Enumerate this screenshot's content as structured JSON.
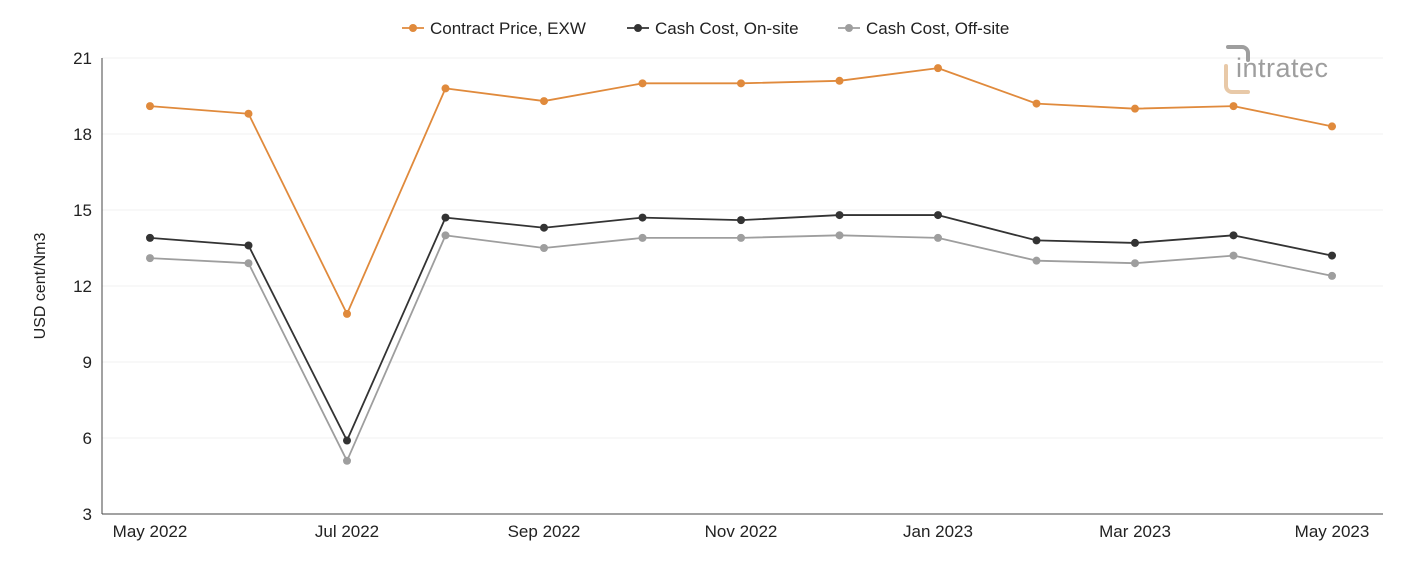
{
  "chart_data": {
    "type": "line",
    "title": "",
    "xlabel": "",
    "ylabel": "USD cent/Nm3",
    "ylim": [
      3,
      21
    ],
    "yticks": [
      "3",
      "6",
      "9",
      "12",
      "15",
      "18",
      "21"
    ],
    "grid": "horizontal",
    "legend_position": "top-center",
    "categories": [
      "May 2022",
      "Jun 2022",
      "Jul 2022",
      "Aug 2022",
      "Sep 2022",
      "Oct 2022",
      "Nov 2022",
      "Dec 2022",
      "Jan 2023",
      "Feb 2023",
      "Mar 2023",
      "Apr 2023",
      "May 2023"
    ],
    "x_tick_labels": [
      "May 2022",
      "",
      "Jul 2022",
      "",
      "Sep 2022",
      "",
      "Nov 2022",
      "",
      "Jan 2023",
      "",
      "Mar 2023",
      "",
      "May 2023"
    ],
    "series": [
      {
        "name": "Contract Price, EXW",
        "color": "#e08a3c",
        "values": [
          19.1,
          18.8,
          10.9,
          19.8,
          19.3,
          20.0,
          20.0,
          20.1,
          20.6,
          19.2,
          19.0,
          19.1,
          18.3
        ]
      },
      {
        "name": "Cash Cost, On-site",
        "color": "#333333",
        "values": [
          13.9,
          13.6,
          5.9,
          14.7,
          14.3,
          14.7,
          14.6,
          14.8,
          14.8,
          13.8,
          13.7,
          14.0,
          13.2
        ]
      },
      {
        "name": "Cash Cost, Off-site",
        "color": "#9e9e9e",
        "values": [
          13.1,
          12.9,
          5.1,
          14.0,
          13.5,
          13.9,
          13.9,
          14.0,
          13.9,
          13.0,
          12.9,
          13.2,
          12.4
        ]
      }
    ]
  },
  "logo": {
    "text": "intratec",
    "icon": "intratec-logo-icon",
    "accent_color": "#e8c9a8",
    "text_color": "#9e9e9e"
  }
}
